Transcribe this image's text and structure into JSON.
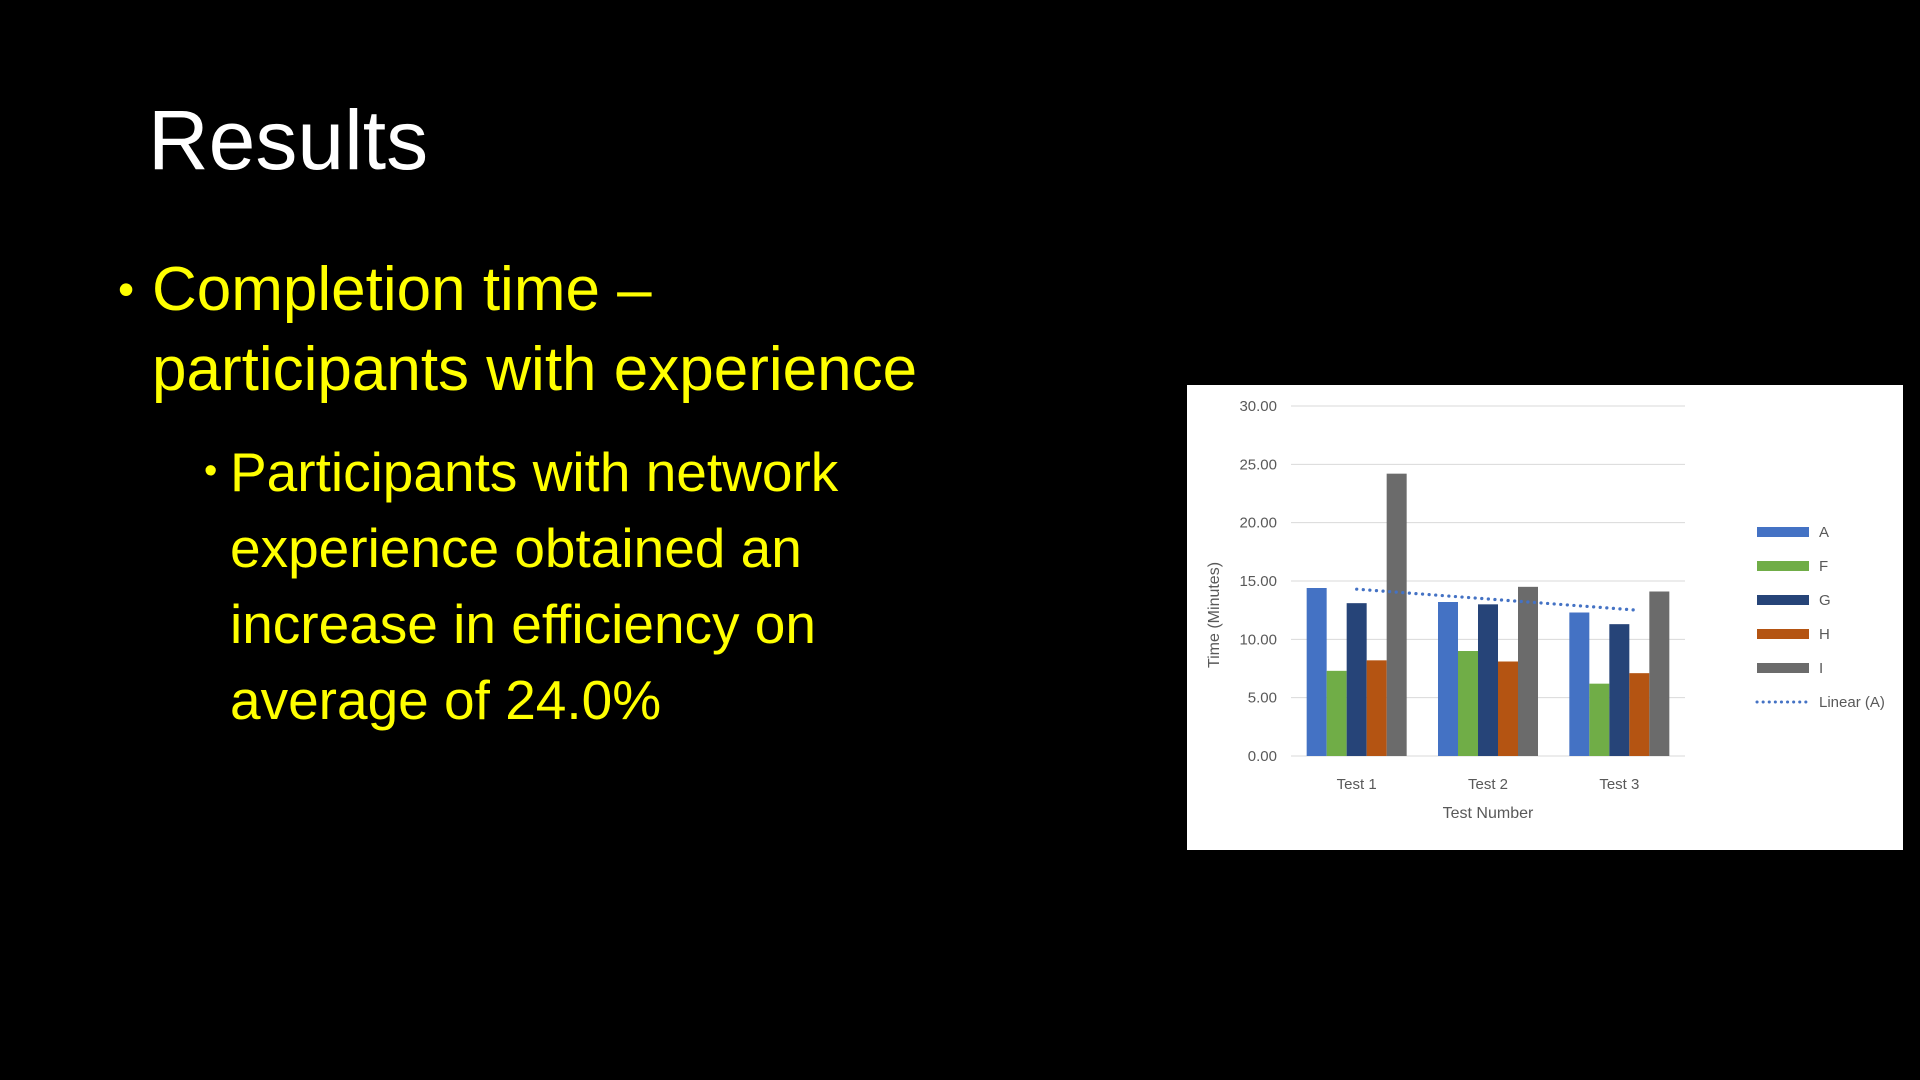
{
  "slide": {
    "title": "Results",
    "bullets": [
      {
        "marker": "•",
        "level": 1,
        "text": "Completion time –\nparticipants with experience"
      },
      {
        "marker": "•",
        "level": 2,
        "text": "Participants with network\nexperience obtained an\nincrease in efficiency on\naverage of 24.0%"
      }
    ],
    "colors": {
      "background": "#000000",
      "title_text": "#FFFFFF",
      "body_text": "#FFFF00"
    }
  },
  "chart_data": {
    "type": "bar",
    "title": "",
    "xlabel": "Test Number",
    "ylabel": "Time (Minutes)",
    "categories": [
      "Test 1",
      "Test 2",
      "Test 3"
    ],
    "series": [
      {
        "name": "A",
        "color": "#4472C4",
        "values": [
          14.4,
          13.2,
          12.3
        ]
      },
      {
        "name": "F",
        "color": "#70AD47",
        "values": [
          7.3,
          9.0,
          6.2
        ]
      },
      {
        "name": "G",
        "color": "#264478",
        "values": [
          13.1,
          13.0,
          11.3
        ]
      },
      {
        "name": "H",
        "color": "#B45412",
        "values": [
          8.2,
          8.1,
          7.1
        ]
      },
      {
        "name": "I",
        "color": "#6B6B6B",
        "values": [
          24.2,
          14.5,
          14.1
        ]
      }
    ],
    "trendline": {
      "name": "Linear (A)",
      "series": "A",
      "style": "dotted",
      "color": "#4472C4",
      "start_value": 14.3,
      "end_value": 12.5
    },
    "ylim": [
      0,
      30
    ],
    "yticks": [
      "0.00",
      "5.00",
      "10.00",
      "15.00",
      "20.00",
      "25.00",
      "30.00"
    ],
    "grid": true,
    "gridline_color": "#D9D9D9",
    "axis_text_color": "#595959",
    "legend_position": "right",
    "legend_order": [
      "A",
      "F",
      "G",
      "H",
      "I",
      "Linear (A)"
    ]
  }
}
